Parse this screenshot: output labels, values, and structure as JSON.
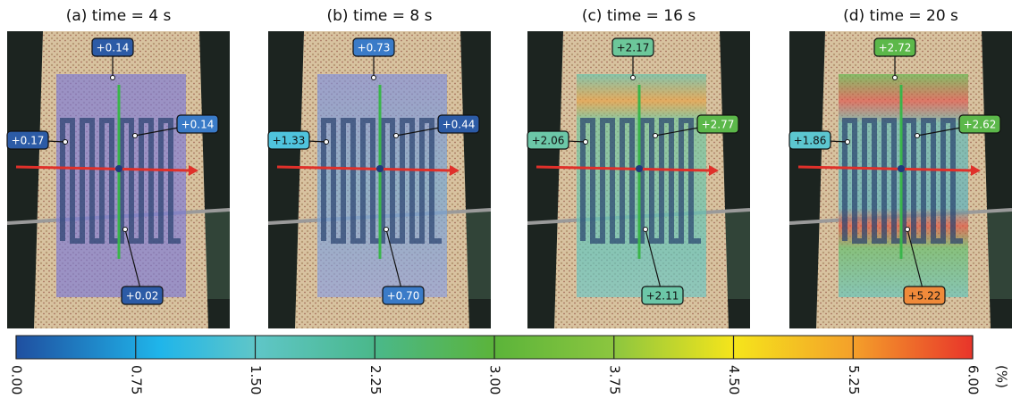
{
  "panels": [
    {
      "title": "(a) time = 4 s",
      "labels": [
        {
          "text": "+0.14",
          "color": "#2c5ba6"
        },
        {
          "text": "+0.17",
          "color": "#2c5ba6"
        },
        {
          "text": "+0.14",
          "color": "#3a7bc8"
        },
        {
          "text": "+0.02",
          "color": "#2c5ba6"
        }
      ]
    },
    {
      "title": "(b) time = 8 s",
      "labels": [
        {
          "text": "+0.73",
          "color": "#3a7bc8"
        },
        {
          "text": "+1.33",
          "color": "#4fc3dd"
        },
        {
          "text": "+0.44",
          "color": "#2c5ba6"
        },
        {
          "text": "+0.70",
          "color": "#3a7bc8"
        }
      ]
    },
    {
      "title": "(c) time = 16 s",
      "labels": [
        {
          "text": "+2.17",
          "color": "#6cc79a"
        },
        {
          "text": "+2.06",
          "color": "#6cc7a8"
        },
        {
          "text": "+2.77",
          "color": "#5cb84a"
        },
        {
          "text": "+2.11",
          "color": "#6cc7a8"
        }
      ]
    },
    {
      "title": "(d) time = 20 s",
      "labels": [
        {
          "text": "+2.72",
          "color": "#5cb84a"
        },
        {
          "text": "+1.86",
          "color": "#5cc6d0"
        },
        {
          "text": "+2.62",
          "color": "#5cb84a"
        },
        {
          "text": "+5.22",
          "color": "#f08a3a"
        }
      ]
    }
  ],
  "colorbar": {
    "range": [
      0,
      6
    ],
    "unit": "(%)",
    "ticks": [
      {
        "value": 0,
        "label": "0.00"
      },
      {
        "value": 0.75,
        "label": "0.75"
      },
      {
        "value": 1.5,
        "label": "1.50"
      },
      {
        "value": 2.25,
        "label": "2.25"
      },
      {
        "value": 3,
        "label": "3.00"
      },
      {
        "value": 3.75,
        "label": "3.75"
      },
      {
        "value": 4.5,
        "label": "4.50"
      },
      {
        "value": 5.25,
        "label": "5.25"
      },
      {
        "value": 6,
        "label": "6.00"
      }
    ]
  }
}
